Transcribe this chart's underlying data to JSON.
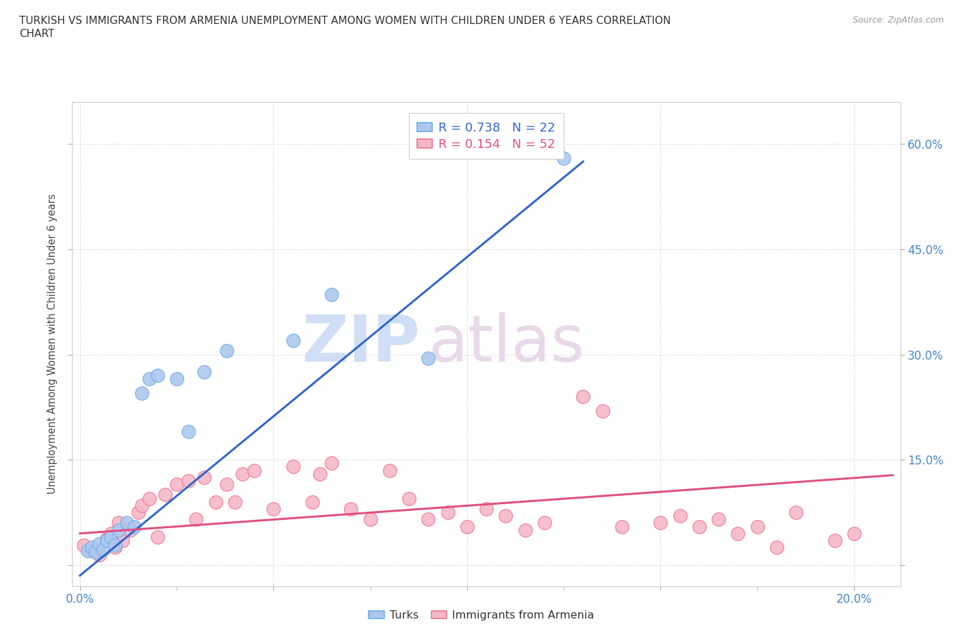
{
  "title_line1": "TURKISH VS IMMIGRANTS FROM ARMENIA UNEMPLOYMENT AMONG WOMEN WITH CHILDREN UNDER 6 YEARS CORRELATION",
  "title_line2": "CHART",
  "source": "Source: ZipAtlas.com",
  "ylabel": "Unemployment Among Women with Children Under 6 years",
  "xlim": [
    -0.002,
    0.212
  ],
  "ylim": [
    -0.03,
    0.66
  ],
  "xticks": [
    0.0,
    0.05,
    0.1,
    0.15,
    0.2
  ],
  "xticklabels": [
    "0.0%",
    "",
    "",
    "",
    "20.0%"
  ],
  "yticks": [
    0.0,
    0.15,
    0.3,
    0.45,
    0.6
  ],
  "yticklabels": [
    "",
    "15.0%",
    "30.0%",
    "45.0%",
    "60.0%"
  ],
  "turks_color": "#adc8ee",
  "armenia_color": "#f5b8c8",
  "turks_edge_color": "#6aaae8",
  "armenia_edge_color": "#f07090",
  "turks_line_color": "#3366cc",
  "armenia_line_color": "#e05080",
  "turks_x": [
    0.002,
    0.003,
    0.004,
    0.005,
    0.006,
    0.007,
    0.008,
    0.009,
    0.01,
    0.012,
    0.014,
    0.016,
    0.018,
    0.02,
    0.025,
    0.028,
    0.032,
    0.038,
    0.055,
    0.065,
    0.09,
    0.125
  ],
  "turks_y": [
    0.02,
    0.025,
    0.018,
    0.03,
    0.022,
    0.035,
    0.04,
    0.028,
    0.05,
    0.06,
    0.055,
    0.245,
    0.265,
    0.27,
    0.265,
    0.19,
    0.275,
    0.305,
    0.32,
    0.385,
    0.295,
    0.58
  ],
  "armenia_x": [
    0.001,
    0.003,
    0.005,
    0.007,
    0.008,
    0.009,
    0.01,
    0.011,
    0.013,
    0.015,
    0.016,
    0.018,
    0.02,
    0.022,
    0.025,
    0.028,
    0.03,
    0.032,
    0.035,
    0.038,
    0.04,
    0.042,
    0.045,
    0.05,
    0.055,
    0.06,
    0.062,
    0.065,
    0.07,
    0.075,
    0.08,
    0.085,
    0.09,
    0.095,
    0.1,
    0.105,
    0.11,
    0.115,
    0.12,
    0.13,
    0.135,
    0.14,
    0.15,
    0.155,
    0.16,
    0.165,
    0.17,
    0.175,
    0.18,
    0.185,
    0.195,
    0.2
  ],
  "armenia_y": [
    0.028,
    0.02,
    0.015,
    0.038,
    0.045,
    0.025,
    0.06,
    0.035,
    0.05,
    0.075,
    0.085,
    0.095,
    0.04,
    0.1,
    0.115,
    0.12,
    0.065,
    0.125,
    0.09,
    0.115,
    0.09,
    0.13,
    0.135,
    0.08,
    0.14,
    0.09,
    0.13,
    0.145,
    0.08,
    0.065,
    0.135,
    0.095,
    0.065,
    0.075,
    0.055,
    0.08,
    0.07,
    0.05,
    0.06,
    0.24,
    0.22,
    0.055,
    0.06,
    0.07,
    0.055,
    0.065,
    0.045,
    0.055,
    0.025,
    0.075,
    0.035,
    0.045
  ],
  "turks_line_x": [
    0.0,
    0.13
  ],
  "turks_line_y": [
    -0.015,
    0.575
  ],
  "armenia_line_x": [
    0.0,
    0.21
  ],
  "armenia_line_y": [
    0.045,
    0.128
  ],
  "R_turks": "0.738",
  "N_turks": "22",
  "R_armenia": "0.154",
  "N_armenia": "52",
  "watermark_zip": "ZIP",
  "watermark_atlas": "atlas",
  "background_color": "#ffffff",
  "grid_color": "#dddddd"
}
